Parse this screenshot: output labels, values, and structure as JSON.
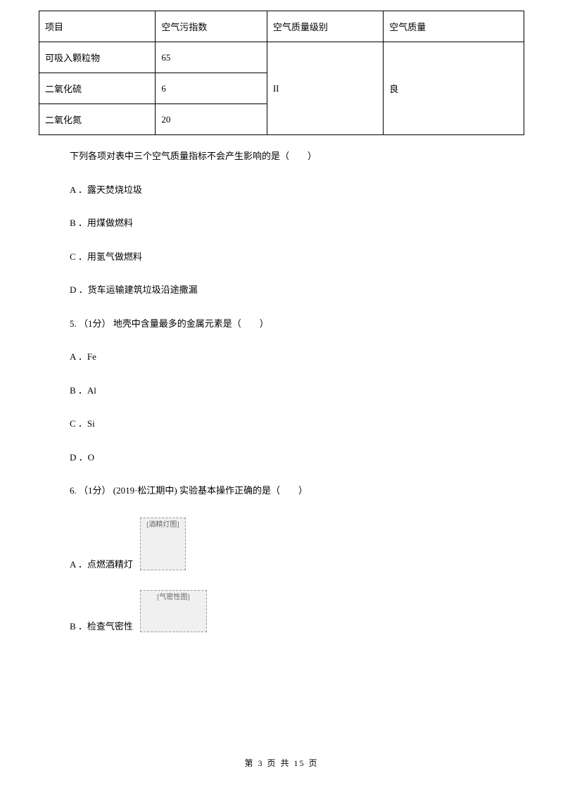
{
  "table": {
    "headers": [
      "项目",
      "空气污指数",
      "空气质量级别",
      "空气质量"
    ],
    "rows": [
      [
        "可吸入颗粒物",
        "65"
      ],
      [
        "二氧化硫",
        "6"
      ],
      [
        "二氧化氮",
        "20"
      ]
    ],
    "merged_level": "II",
    "merged_quality": "良"
  },
  "q4_text": "下列各项对表中三个空气质量指标不会产生影响的是（　　）",
  "q4_optA": "A ．露天焚烧垃圾",
  "q4_optB": "B ．用煤做燃料",
  "q4_optC": "C ．用氢气做燃料",
  "q4_optD": "D ．货车运输建筑垃圾沿途撒漏",
  "q5_text": "5. （1分） 地壳中含量最多的金属元素是（　　）",
  "q5_optA": "A ．Fe",
  "q5_optB": "B ．Al",
  "q5_optC": "C ．Si",
  "q5_optD": "D ．O",
  "q6_text": "6. （1分） (2019·松江期中) 实验基本操作正确的是（　　）",
  "q6_optA": "A ．点燃酒精灯",
  "q6_optB": "B ．检查气密性",
  "img_lamp_alt": "[酒精灯图]",
  "img_tube_alt": "[气密性图]",
  "footer": "第 3 页 共 15 页"
}
